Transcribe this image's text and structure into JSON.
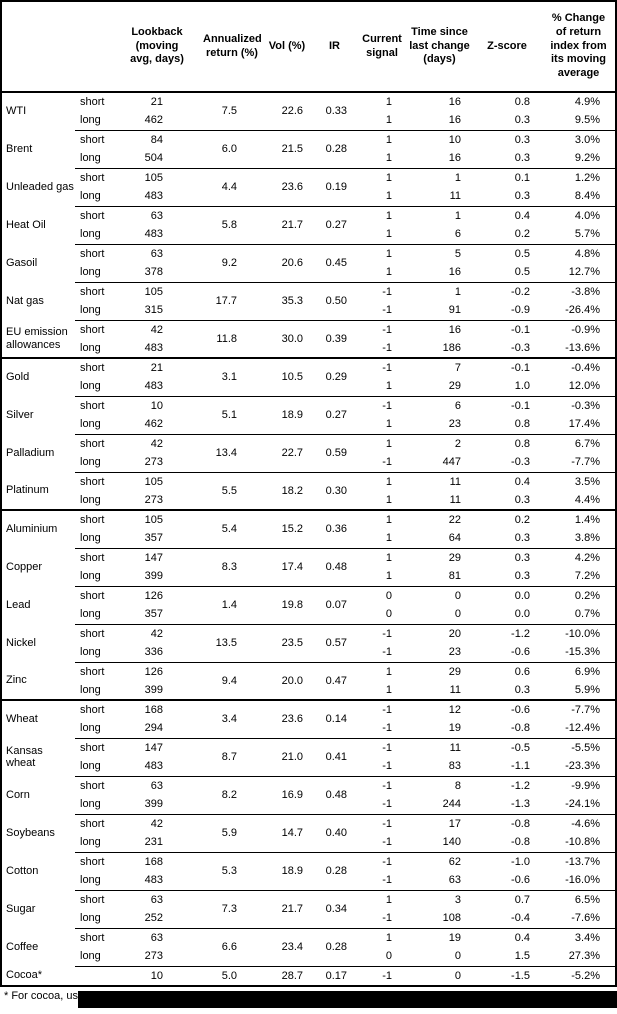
{
  "table": {
    "headers": {
      "commodity": "",
      "leg": "",
      "lookback": "Lookback (moving avg, days)",
      "annualized": "Annualized return (%)",
      "vol": "Vol (%)",
      "ir": "IR",
      "signal": "Current signal",
      "time": "Time since last change (days)",
      "zscore": "Z-score",
      "pct": "% Change of return index from its moving average"
    },
    "colors": {
      "text": "#000000",
      "background": "#ffffff",
      "rule": "#000000"
    },
    "footnote": "* For cocoa, uses o",
    "sections": [
      {
        "commodities": [
          {
            "name": "WTI",
            "annualized": "7.5",
            "vol": "22.6",
            "ir": "0.33",
            "rows": [
              {
                "label": "short",
                "lookback": "21",
                "signal": "1",
                "time": "16",
                "z": "0.8",
                "pct": "4.9%"
              },
              {
                "label": "long",
                "lookback": "462",
                "signal": "1",
                "time": "16",
                "z": "0.3",
                "pct": "9.5%"
              }
            ]
          },
          {
            "name": "Brent",
            "annualized": "6.0",
            "vol": "21.5",
            "ir": "0.28",
            "rows": [
              {
                "label": "short",
                "lookback": "84",
                "signal": "1",
                "time": "10",
                "z": "0.3",
                "pct": "3.0%"
              },
              {
                "label": "long",
                "lookback": "504",
                "signal": "1",
                "time": "16",
                "z": "0.3",
                "pct": "9.2%"
              }
            ]
          },
          {
            "name": "Unleaded gas",
            "annualized": "4.4",
            "vol": "23.6",
            "ir": "0.19",
            "rows": [
              {
                "label": "short",
                "lookback": "105",
                "signal": "1",
                "time": "1",
                "z": "0.1",
                "pct": "1.2%"
              },
              {
                "label": "long",
                "lookback": "483",
                "signal": "1",
                "time": "11",
                "z": "0.3",
                "pct": "8.4%"
              }
            ]
          },
          {
            "name": "Heat Oil",
            "annualized": "5.8",
            "vol": "21.7",
            "ir": "0.27",
            "rows": [
              {
                "label": "short",
                "lookback": "63",
                "signal": "1",
                "time": "1",
                "z": "0.4",
                "pct": "4.0%"
              },
              {
                "label": "long",
                "lookback": "483",
                "signal": "1",
                "time": "6",
                "z": "0.2",
                "pct": "5.7%"
              }
            ]
          },
          {
            "name": "Gasoil",
            "annualized": "9.2",
            "vol": "20.6",
            "ir": "0.45",
            "rows": [
              {
                "label": "short",
                "lookback": "63",
                "signal": "1",
                "time": "5",
                "z": "0.5",
                "pct": "4.8%"
              },
              {
                "label": "long",
                "lookback": "378",
                "signal": "1",
                "time": "16",
                "z": "0.5",
                "pct": "12.7%"
              }
            ]
          },
          {
            "name": "Nat gas",
            "annualized": "17.7",
            "vol": "35.3",
            "ir": "0.50",
            "rows": [
              {
                "label": "short",
                "lookback": "105",
                "signal": "-1",
                "time": "1",
                "z": "-0.2",
                "pct": "-3.8%"
              },
              {
                "label": "long",
                "lookback": "315",
                "signal": "-1",
                "time": "91",
                "z": "-0.9",
                "pct": "-26.4%"
              }
            ]
          },
          {
            "name": "EU emission allowances",
            "annualized": "11.8",
            "vol": "30.0",
            "ir": "0.39",
            "rows": [
              {
                "label": "short",
                "lookback": "42",
                "signal": "-1",
                "time": "16",
                "z": "-0.1",
                "pct": "-0.9%"
              },
              {
                "label": "long",
                "lookback": "483",
                "signal": "-1",
                "time": "186",
                "z": "-0.3",
                "pct": "-13.6%"
              }
            ]
          }
        ]
      },
      {
        "commodities": [
          {
            "name": "Gold",
            "annualized": "3.1",
            "vol": "10.5",
            "ir": "0.29",
            "rows": [
              {
                "label": "short",
                "lookback": "21",
                "signal": "-1",
                "time": "7",
                "z": "-0.1",
                "pct": "-0.4%"
              },
              {
                "label": "long",
                "lookback": "483",
                "signal": "1",
                "time": "29",
                "z": "1.0",
                "pct": "12.0%"
              }
            ]
          },
          {
            "name": "Silver",
            "annualized": "5.1",
            "vol": "18.9",
            "ir": "0.27",
            "rows": [
              {
                "label": "short",
                "lookback": "10",
                "signal": "-1",
                "time": "6",
                "z": "-0.1",
                "pct": "-0.3%"
              },
              {
                "label": "long",
                "lookback": "462",
                "signal": "1",
                "time": "23",
                "z": "0.8",
                "pct": "17.4%"
              }
            ]
          },
          {
            "name": "Palladium",
            "annualized": "13.4",
            "vol": "22.7",
            "ir": "0.59",
            "rows": [
              {
                "label": "short",
                "lookback": "42",
                "signal": "1",
                "time": "2",
                "z": "0.8",
                "pct": "6.7%"
              },
              {
                "label": "long",
                "lookback": "273",
                "signal": "-1",
                "time": "447",
                "z": "-0.3",
                "pct": "-7.7%"
              }
            ]
          },
          {
            "name": "Platinum",
            "annualized": "5.5",
            "vol": "18.2",
            "ir": "0.30",
            "rows": [
              {
                "label": "short",
                "lookback": "105",
                "signal": "1",
                "time": "11",
                "z": "0.4",
                "pct": "3.5%"
              },
              {
                "label": "long",
                "lookback": "273",
                "signal": "1",
                "time": "11",
                "z": "0.3",
                "pct": "4.4%"
              }
            ]
          }
        ]
      },
      {
        "commodities": [
          {
            "name": "Aluminium",
            "annualized": "5.4",
            "vol": "15.2",
            "ir": "0.36",
            "rows": [
              {
                "label": "short",
                "lookback": "105",
                "signal": "1",
                "time": "22",
                "z": "0.2",
                "pct": "1.4%"
              },
              {
                "label": "long",
                "lookback": "357",
                "signal": "1",
                "time": "64",
                "z": "0.3",
                "pct": "3.8%"
              }
            ]
          },
          {
            "name": "Copper",
            "annualized": "8.3",
            "vol": "17.4",
            "ir": "0.48",
            "rows": [
              {
                "label": "short",
                "lookback": "147",
                "signal": "1",
                "time": "29",
                "z": "0.3",
                "pct": "4.2%"
              },
              {
                "label": "long",
                "lookback": "399",
                "signal": "1",
                "time": "81",
                "z": "0.3",
                "pct": "7.2%"
              }
            ]
          },
          {
            "name": "Lead",
            "annualized": "1.4",
            "vol": "19.8",
            "ir": "0.07",
            "rows": [
              {
                "label": "short",
                "lookback": "126",
                "signal": "0",
                "time": "0",
                "z": "0.0",
                "pct": "0.2%"
              },
              {
                "label": "long",
                "lookback": "357",
                "signal": "0",
                "time": "0",
                "z": "0.0",
                "pct": "0.7%"
              }
            ]
          },
          {
            "name": "Nickel",
            "annualized": "13.5",
            "vol": "23.5",
            "ir": "0.57",
            "rows": [
              {
                "label": "short",
                "lookback": "42",
                "signal": "-1",
                "time": "20",
                "z": "-1.2",
                "pct": "-10.0%"
              },
              {
                "label": "long",
                "lookback": "336",
                "signal": "-1",
                "time": "23",
                "z": "-0.6",
                "pct": "-15.3%"
              }
            ]
          },
          {
            "name": "Zinc",
            "annualized": "9.4",
            "vol": "20.0",
            "ir": "0.47",
            "rows": [
              {
                "label": "short",
                "lookback": "126",
                "signal": "1",
                "time": "29",
                "z": "0.6",
                "pct": "6.9%"
              },
              {
                "label": "long",
                "lookback": "399",
                "signal": "1",
                "time": "11",
                "z": "0.3",
                "pct": "5.9%"
              }
            ]
          }
        ]
      },
      {
        "commodities": [
          {
            "name": "Wheat",
            "annualized": "3.4",
            "vol": "23.6",
            "ir": "0.14",
            "rows": [
              {
                "label": "short",
                "lookback": "168",
                "signal": "-1",
                "time": "12",
                "z": "-0.6",
                "pct": "-7.7%"
              },
              {
                "label": "long",
                "lookback": "294",
                "signal": "-1",
                "time": "19",
                "z": "-0.8",
                "pct": "-12.4%"
              }
            ]
          },
          {
            "name": "Kansas wheat",
            "annualized": "8.7",
            "vol": "21.0",
            "ir": "0.41",
            "rows": [
              {
                "label": "short",
                "lookback": "147",
                "signal": "-1",
                "time": "11",
                "z": "-0.5",
                "pct": "-5.5%"
              },
              {
                "label": "long",
                "lookback": "483",
                "signal": "-1",
                "time": "83",
                "z": "-1.1",
                "pct": "-23.3%"
              }
            ]
          },
          {
            "name": "Corn",
            "annualized": "8.2",
            "vol": "16.9",
            "ir": "0.48",
            "rows": [
              {
                "label": "short",
                "lookback": "63",
                "signal": "-1",
                "time": "8",
                "z": "-1.2",
                "pct": "-9.9%"
              },
              {
                "label": "long",
                "lookback": "399",
                "signal": "-1",
                "time": "244",
                "z": "-1.3",
                "pct": "-24.1%"
              }
            ]
          },
          {
            "name": "Soybeans",
            "annualized": "5.9",
            "vol": "14.7",
            "ir": "0.40",
            "rows": [
              {
                "label": "short",
                "lookback": "42",
                "signal": "-1",
                "time": "17",
                "z": "-0.8",
                "pct": "-4.6%"
              },
              {
                "label": "long",
                "lookback": "231",
                "signal": "-1",
                "time": "140",
                "z": "-0.8",
                "pct": "-10.8%"
              }
            ]
          },
          {
            "name": "Cotton",
            "annualized": "5.3",
            "vol": "18.9",
            "ir": "0.28",
            "rows": [
              {
                "label": "short",
                "lookback": "168",
                "signal": "-1",
                "time": "62",
                "z": "-1.0",
                "pct": "-13.7%"
              },
              {
                "label": "long",
                "lookback": "483",
                "signal": "-1",
                "time": "63",
                "z": "-0.6",
                "pct": "-16.0%"
              }
            ]
          },
          {
            "name": "Sugar",
            "annualized": "7.3",
            "vol": "21.7",
            "ir": "0.34",
            "rows": [
              {
                "label": "short",
                "lookback": "63",
                "signal": "1",
                "time": "3",
                "z": "0.7",
                "pct": "6.5%"
              },
              {
                "label": "long",
                "lookback": "252",
                "signal": "-1",
                "time": "108",
                "z": "-0.4",
                "pct": "-7.6%"
              }
            ]
          },
          {
            "name": "Coffee",
            "annualized": "6.6",
            "vol": "23.4",
            "ir": "0.28",
            "rows": [
              {
                "label": "short",
                "lookback": "63",
                "signal": "1",
                "time": "19",
                "z": "0.4",
                "pct": "3.4%"
              },
              {
                "label": "long",
                "lookback": "273",
                "signal": "0",
                "time": "0",
                "z": "1.5",
                "pct": "27.3%"
              }
            ]
          },
          {
            "name": "Cocoa*",
            "annualized": "5.0",
            "vol": "28.7",
            "ir": "0.17",
            "rows": [
              {
                "label": "",
                "lookback": "10",
                "signal": "-1",
                "time": "0",
                "z": "-1.5",
                "pct": "-5.2%"
              }
            ]
          }
        ]
      }
    ]
  }
}
